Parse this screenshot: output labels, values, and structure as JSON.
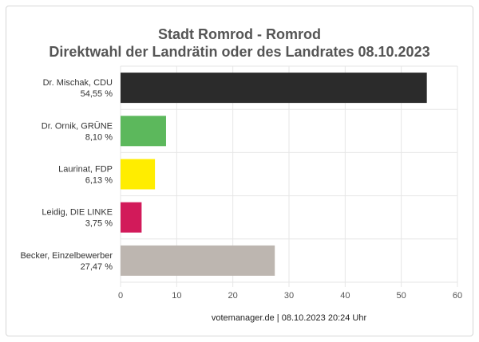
{
  "chart_data": {
    "type": "bar",
    "orientation": "horizontal",
    "title": "Stadt Romrod - Romrod",
    "subtitle": "Direktwahl der Landrätin oder des Landrates 08.10.2023",
    "categories": [
      "Dr. Mischak, CDU",
      "Dr. Ornik, GRÜNE",
      "Laurinat, FDP",
      "Leidig, DIE LINKE",
      "Becker, Einzelbewerber"
    ],
    "value_labels": [
      "54,55 %",
      "8,10 %",
      "6,13 %",
      "3,75 %",
      "27,47 %"
    ],
    "values": [
      54.55,
      8.1,
      6.13,
      3.75,
      27.47
    ],
    "colors": [
      "#2b2b2b",
      "#5cb85c",
      "#ffed00",
      "#d21a5a",
      "#bdb6b0"
    ],
    "xlim": [
      0,
      60
    ],
    "xticks": [
      0,
      10,
      20,
      30,
      40,
      50,
      60
    ],
    "grid": true,
    "footer": "votemanager.de | 08.10.2023 20:24 Uhr"
  }
}
